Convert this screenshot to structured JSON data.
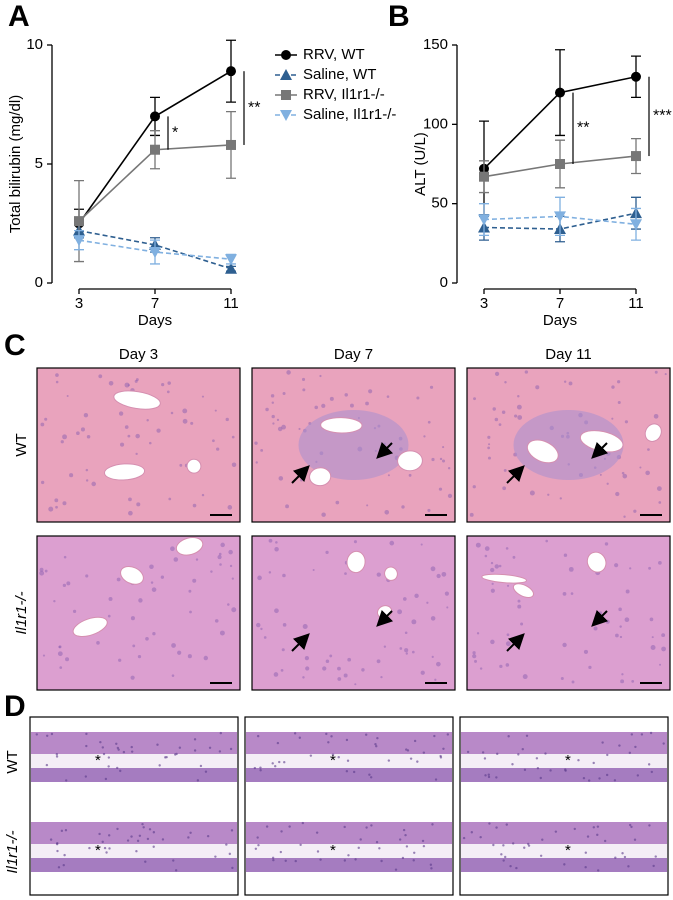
{
  "chart_data": [
    {
      "type": "line",
      "label": "A",
      "ylabel": "Total bilirubin (mg/dl)",
      "xlabel": "Days",
      "x": [
        3,
        7,
        11
      ],
      "xlim": [
        2,
        12
      ],
      "xticks": [
        3,
        7,
        11
      ],
      "ylim": [
        0,
        10
      ],
      "yticks": [
        0,
        5,
        10
      ],
      "legend": "right",
      "series": [
        {
          "name": "RRV, WT",
          "color": "#000000",
          "marker": "circle",
          "dash": false,
          "values": [
            2.5,
            7.0,
            8.9
          ],
          "errors": [
            0.6,
            0.8,
            1.3
          ]
        },
        {
          "name": "Saline, WT",
          "color": "#2e5f90",
          "marker": "triangle",
          "dash": true,
          "values": [
            2.2,
            1.6,
            0.6
          ],
          "errors": [
            0.3,
            0.3,
            0.1
          ]
        },
        {
          "name": "RRV, Il1r1-/-",
          "color": "#777777",
          "marker": "square",
          "dash": false,
          "values": [
            2.6,
            5.6,
            5.8
          ],
          "errors": [
            1.7,
            0.8,
            1.4
          ]
        },
        {
          "name": "Saline, Il1r1-/-",
          "color": "#80b0e0",
          "marker": "triangle-down",
          "dash": true,
          "values": [
            1.8,
            1.3,
            1.0
          ],
          "errors": [
            0.4,
            0.5,
            0.2
          ]
        }
      ],
      "annotations": [
        {
          "text": "*",
          "x": 7
        },
        {
          "text": "**",
          "x": 11
        }
      ]
    },
    {
      "type": "line",
      "label": "B",
      "ylabel": "ALT (U/L)",
      "xlabel": "Days",
      "x": [
        3,
        7,
        11
      ],
      "xlim": [
        2,
        12
      ],
      "xticks": [
        3,
        7,
        11
      ],
      "ylim": [
        0,
        150
      ],
      "yticks": [
        0,
        50,
        100,
        150
      ],
      "series": [
        {
          "name": "RRV, WT",
          "color": "#000000",
          "marker": "circle",
          "dash": false,
          "values": [
            72,
            120,
            130
          ],
          "errors": [
            30,
            27,
            13
          ]
        },
        {
          "name": "Saline, WT",
          "color": "#2e5f90",
          "marker": "triangle",
          "dash": true,
          "values": [
            35,
            34,
            44
          ],
          "errors": [
            8,
            8,
            10
          ]
        },
        {
          "name": "RRV, Il1r1-/-",
          "color": "#777777",
          "marker": "square",
          "dash": false,
          "values": [
            67,
            75,
            80
          ],
          "errors": [
            10,
            15,
            11
          ]
        },
        {
          "name": "Saline, Il1r1-/-",
          "color": "#80b0e0",
          "marker": "triangle-down",
          "dash": true,
          "values": [
            40,
            42,
            37
          ],
          "errors": [
            10,
            12,
            10
          ]
        }
      ],
      "annotations": [
        {
          "text": "**",
          "x": 7
        },
        {
          "text": "***",
          "x": 11
        }
      ]
    }
  ],
  "panel_c": {
    "label": "C",
    "columns": [
      "Day 3",
      "Day 7",
      "Day 11"
    ],
    "rows": [
      "WT",
      "Il1r1-/-"
    ]
  },
  "panel_d": {
    "label": "D",
    "rows": [
      "WT",
      "Il1r1-/-"
    ],
    "lumen_marks": [
      "*",
      "*",
      "*",
      "*",
      "*",
      "*"
    ]
  }
}
